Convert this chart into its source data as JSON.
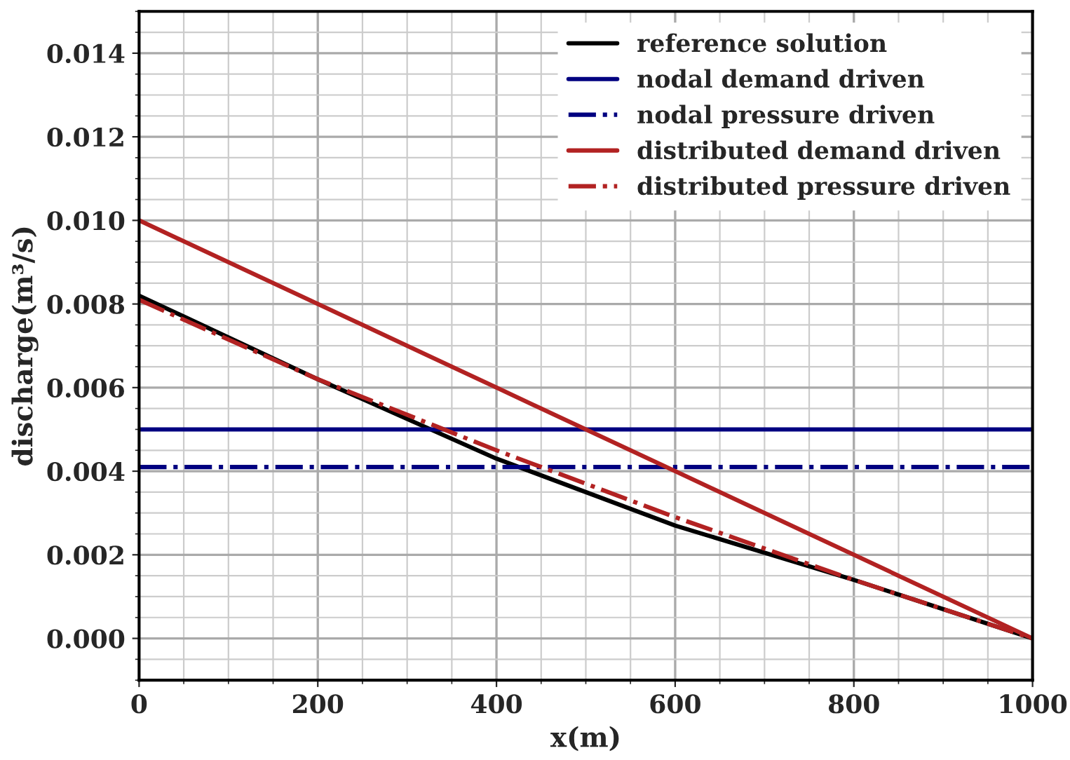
{
  "chart_data": {
    "type": "line",
    "xlabel": "x(m)",
    "ylabel": "discharge(m³/s)",
    "x": [
      0,
      200,
      400,
      600,
      800,
      1000
    ],
    "series": [
      {
        "name": "reference solution",
        "color": "#000000",
        "line_style": "solid",
        "values": [
          0.0082,
          0.0062,
          0.0043,
          0.0027,
          0.0014,
          0.0
        ]
      },
      {
        "name": "nodal demand driven",
        "color": "#000080",
        "line_style": "solid",
        "values": [
          0.005,
          0.005,
          0.005,
          0.005,
          0.005,
          0.005
        ]
      },
      {
        "name": "nodal pressure driven",
        "color": "#000080",
        "line_style": "dashdot",
        "values": [
          0.0041,
          0.0041,
          0.0041,
          0.0041,
          0.0041,
          0.0041
        ]
      },
      {
        "name": "distributed demand driven",
        "color": "#b22222",
        "line_style": "solid",
        "values": [
          0.01,
          0.008,
          0.006,
          0.004,
          0.002,
          0.0
        ]
      },
      {
        "name": "distributed pressure driven",
        "color": "#b22222",
        "line_style": "dashdot",
        "values": [
          0.0081,
          0.0062,
          0.0045,
          0.0029,
          0.0014,
          0.0
        ]
      }
    ],
    "xlim": [
      0,
      1000
    ],
    "xticks": [
      0,
      200,
      400,
      600,
      800,
      1000
    ],
    "ylim": [
      -0.001,
      0.015
    ],
    "yticks": [
      {
        "value": 0,
        "label": "0.000"
      },
      {
        "value": 0.002,
        "label": "0.002"
      },
      {
        "value": 0.004,
        "label": "0.004"
      },
      {
        "value": 0.006,
        "label": "0.006"
      },
      {
        "value": 0.008,
        "label": "0.008"
      },
      {
        "value": 0.01,
        "label": "0.010"
      },
      {
        "value": 0.012,
        "label": "0.012"
      },
      {
        "value": 0.014,
        "label": "0.014"
      }
    ],
    "grid": true,
    "legend": "top right"
  }
}
